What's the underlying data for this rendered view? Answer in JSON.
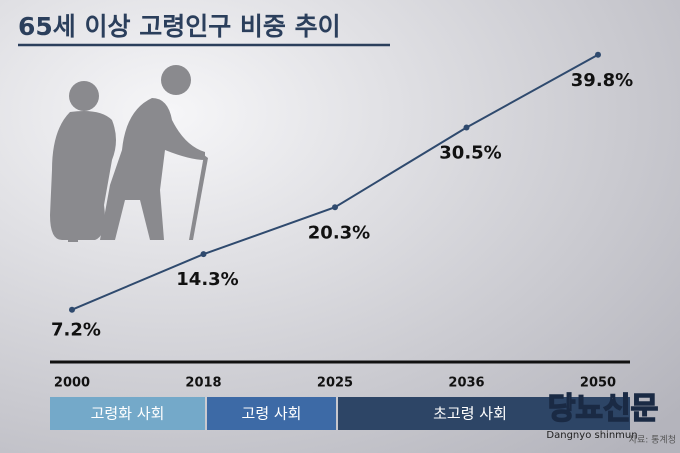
{
  "chart_data": {
    "type": "line",
    "title": "65세 이상 고령인구 비중 추이",
    "categories": [
      "2000",
      "2018",
      "2025",
      "2036",
      "2050"
    ],
    "values": [
      7.2,
      14.3,
      20.3,
      30.5,
      39.8
    ],
    "value_labels": [
      "7.2%",
      "14.3%",
      "20.3%",
      "30.5%",
      "39.8%"
    ],
    "color": "#2f4a6e",
    "periods": [
      {
        "label": "고령화 사회",
        "color": "#74a9c9"
      },
      {
        "label": "고령 사회",
        "color": "#3d6aa6"
      },
      {
        "label": "초고령 사회",
        "color": "#2d4566"
      }
    ]
  },
  "logo": {
    "name": "당뇨신문",
    "subtitle": "Dangnyo shinmun"
  },
  "source": "자료: 통계청"
}
